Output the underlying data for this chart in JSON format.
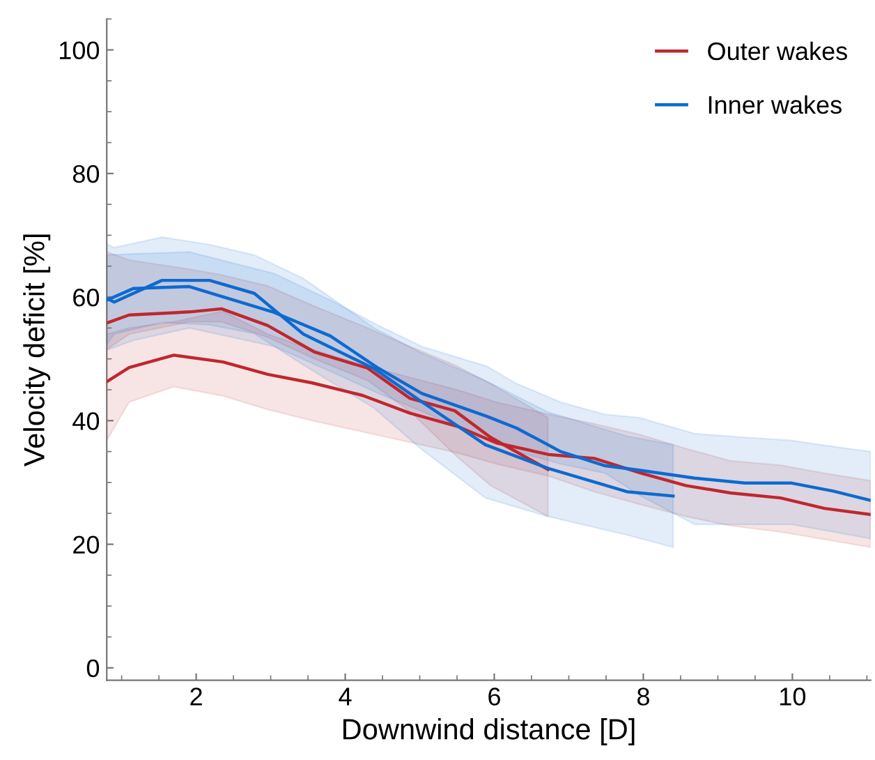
{
  "chart_data": {
    "type": "line",
    "xlabel": "Downwind distance [D]",
    "ylabel": "Velocity deficit [%]",
    "xlim": [
      0.8,
      11.05
    ],
    "ylim": [
      -2,
      105
    ],
    "xticks": [
      2,
      4,
      6,
      8,
      10
    ],
    "yticks": [
      0,
      20,
      40,
      60,
      80,
      100
    ],
    "grid": false,
    "legend": "top right",
    "line_style": "solid",
    "marker": "none",
    "series": [
      {
        "name": "Outer wakes",
        "color": "#c0272d",
        "x": [
          0.8,
          1.1,
          1.91,
          2.34,
          2.96,
          3.59,
          4.3,
          4.87,
          5.47,
          5.95,
          6.72
        ],
        "values": [
          55.8,
          57.1,
          57.6,
          58.1,
          55.4,
          51.1,
          48.5,
          43.6,
          41.6,
          37.3,
          32.1
        ],
        "upper": [
          67.3,
          66,
          64.5,
          63.6,
          61.8,
          58.5,
          55,
          52,
          49,
          46,
          40.5
        ],
        "lower": [
          51.5,
          54,
          56,
          56,
          53.5,
          50,
          46.5,
          41.5,
          34.5,
          29.5,
          24.5
        ]
      },
      {
        "color": "#c0272d",
        "x": [
          0.8,
          1.1,
          1.7,
          2.36,
          2.96,
          3.56,
          4.23,
          4.87,
          5.5,
          6.03,
          6.74,
          7.34,
          7.97,
          8.57,
          9.17,
          9.84,
          10.43,
          11.05
        ],
        "values": [
          46.3,
          48.6,
          50.6,
          49.5,
          47.5,
          46.1,
          44.1,
          41.2,
          39.1,
          36.4,
          34.5,
          33.9,
          31.5,
          29.5,
          28.3,
          27.5,
          25.8,
          24.8
        ],
        "upper": [
          54,
          55,
          56,
          57.7,
          54,
          51.5,
          49,
          47,
          45,
          43,
          41,
          39.5,
          37.7,
          35.5,
          33.5,
          32.8,
          31.5,
          30.3
        ],
        "lower": [
          36.8,
          43,
          45.5,
          44,
          41.8,
          40,
          38.2,
          36.5,
          34.8,
          33,
          31,
          28.5,
          26.4,
          24.5,
          23,
          22,
          20.8,
          19.5
        ]
      },
      {
        "name": "Inner wakes",
        "color": "#0d6ad0",
        "x": [
          0.8,
          0.9,
          1.54,
          2.18,
          2.78,
          3.44,
          4.39,
          5.01,
          5.88,
          6.72,
          7.78,
          8.4
        ],
        "values": [
          59.8,
          59.2,
          62.7,
          62.7,
          60.6,
          54.0,
          48.4,
          43.2,
          36.1,
          32.3,
          28.5,
          27.8
        ],
        "upper": [
          68.6,
          68,
          69.7,
          68.5,
          66.8,
          63,
          55,
          51,
          46.5,
          41.4,
          37.5,
          36.1
        ],
        "lower": [
          52.3,
          54,
          55.9,
          55.5,
          54.1,
          49,
          42,
          35.5,
          27.5,
          24.5,
          21.5,
          19.5
        ]
      },
      {
        "color": "#0d6ad0",
        "x": [
          0.8,
          1.16,
          1.91,
          3.05,
          3.8,
          4.43,
          5.03,
          5.9,
          6.3,
          6.89,
          7.49,
          7.94,
          8.69,
          9.36,
          9.99,
          10.55,
          11.05
        ],
        "values": [
          59.5,
          61.4,
          61.7,
          57.5,
          53.7,
          48.6,
          44.4,
          40.7,
          38.8,
          35.0,
          32.7,
          32.0,
          30.7,
          29.9,
          29.9,
          28.6,
          27.1
        ],
        "upper": [
          66.8,
          67,
          67.3,
          63.8,
          59.5,
          55.5,
          52,
          48.8,
          46,
          43,
          41,
          40.5,
          37.9,
          37.3,
          36.8,
          35.8,
          35
        ],
        "lower": [
          51.4,
          53,
          55,
          52,
          48,
          44.5,
          41.5,
          37,
          35,
          33,
          31.5,
          28,
          23.2,
          23.2,
          23.2,
          22,
          20.9
        ]
      }
    ]
  }
}
